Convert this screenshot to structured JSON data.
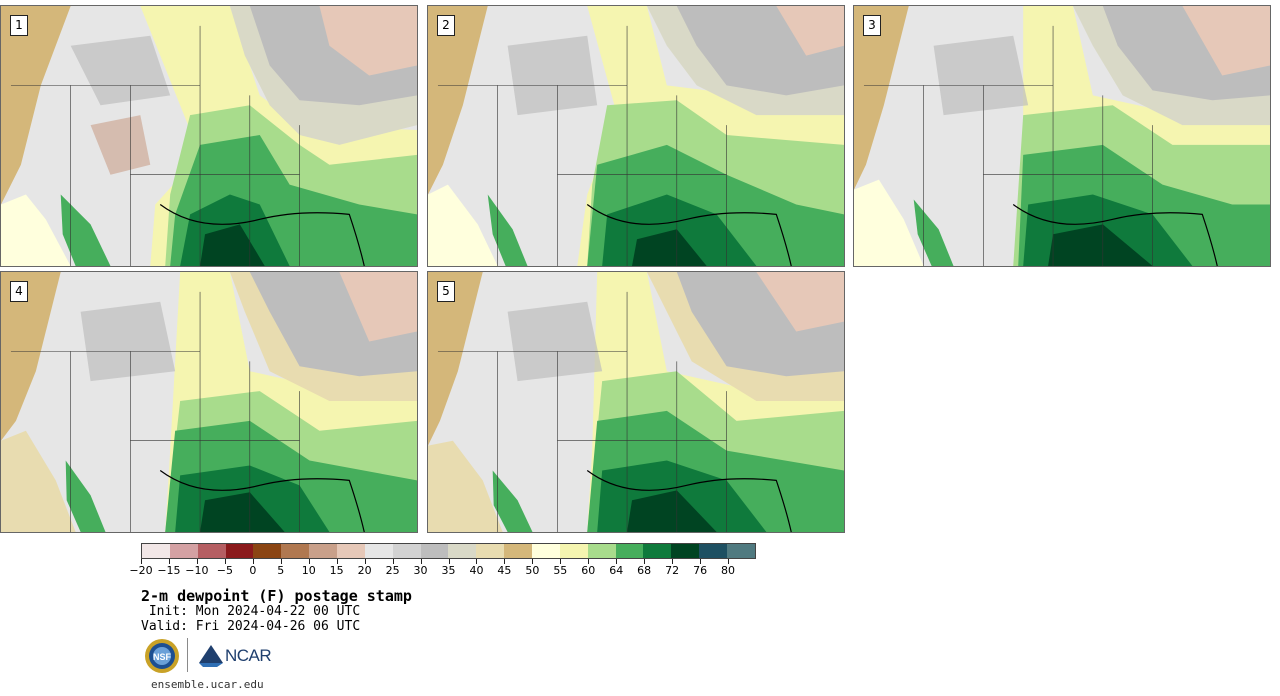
{
  "panels": [
    {
      "label": "1"
    },
    {
      "label": "2"
    },
    {
      "label": "3"
    },
    {
      "label": "4"
    },
    {
      "label": "5"
    }
  ],
  "colorbar": {
    "colors": [
      "#f2e7e7",
      "#d4a1a3",
      "#b55e62",
      "#8b1a1c",
      "#8b4513",
      "#b07850",
      "#c9a08a",
      "#e6c8b8",
      "#e6e6e6",
      "#d2d2d2",
      "#bdbdbd",
      "#d9d9c7",
      "#e8dcb0",
      "#d4b77a",
      "#ffffdd",
      "#f5f5b0",
      "#a8dc8c",
      "#46ae5c",
      "#0f7a3c",
      "#004422",
      "#1e5062",
      "#507a80"
    ],
    "tick_labels": [
      "−20",
      "−15",
      "−10",
      "−5",
      "0",
      "5",
      "10",
      "15",
      "20",
      "25",
      "30",
      "35",
      "40",
      "45",
      "50",
      "55",
      "60",
      "64",
      "68",
      "72",
      "76",
      "80"
    ]
  },
  "title": "2-m dewpoint (F) postage stamp",
  "init": " Init: Mon 2024-04-22 00 UTC",
  "valid": "Valid: Fri 2024-04-26 06 UTC",
  "logos": {
    "nsf": "NSF",
    "ncar": "NCAR"
  },
  "site": "ensemble.ucar.edu"
}
